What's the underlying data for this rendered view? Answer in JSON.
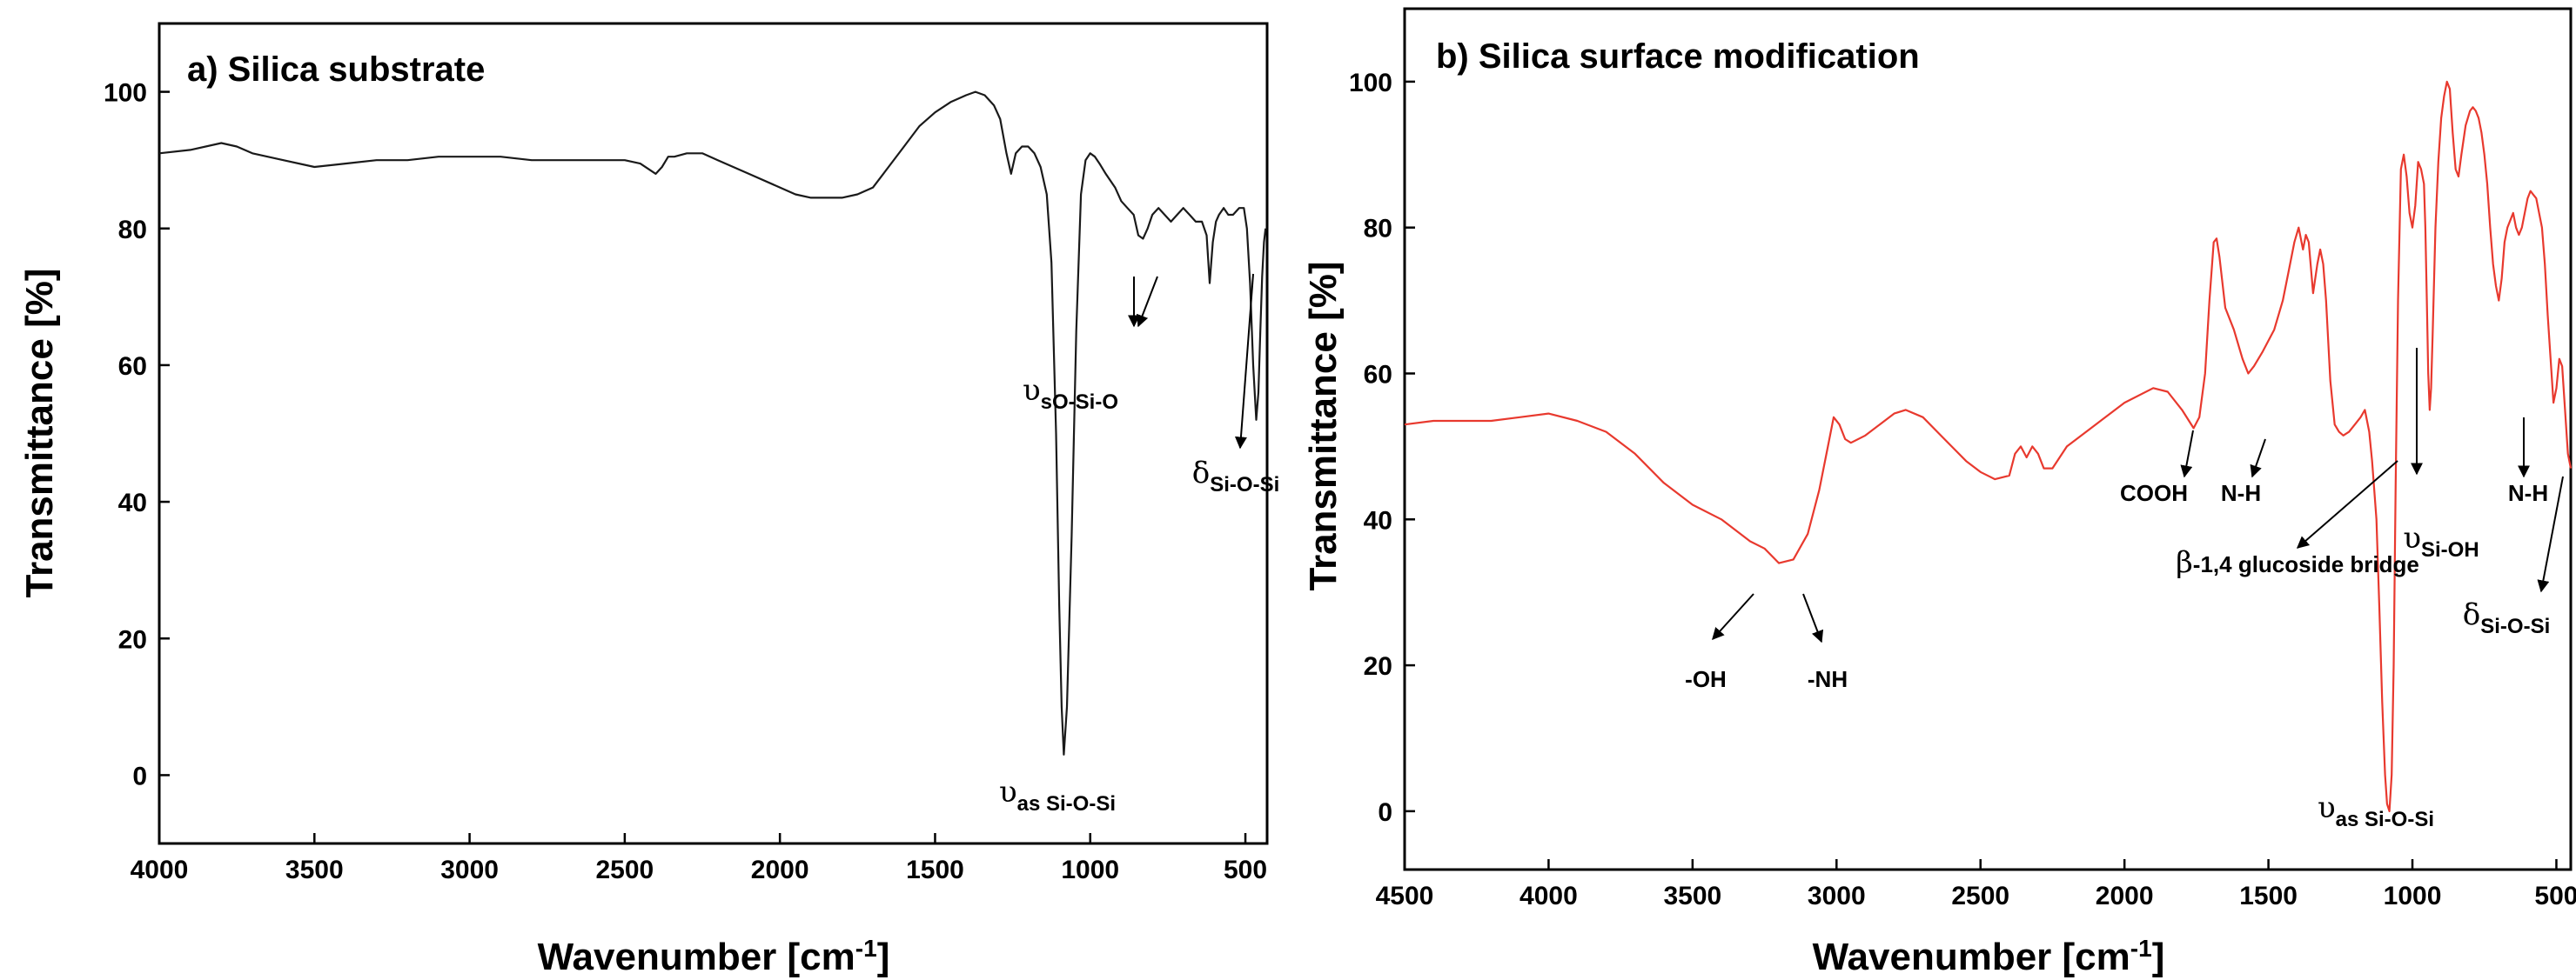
{
  "chart_data": [
    {
      "type": "line",
      "title": "a) Silica substrate",
      "xlabel": "Wavenumber [cm",
      "xlabel_sup": "-1",
      "xlabel_end": "]",
      "ylabel": "Transmittance [%]",
      "xlim": [
        4000,
        430
      ],
      "ylim": [
        -10,
        110
      ],
      "xticks": [
        4000,
        3500,
        3000,
        2500,
        2000,
        1500,
        1000,
        500
      ],
      "yticks": [
        0,
        20,
        40,
        60,
        80,
        100
      ],
      "line_color": "#1a1a1a",
      "series": [
        {
          "name": "Silica substrate",
          "x": [
            4000,
            3900,
            3800,
            3750,
            3700,
            3600,
            3500,
            3400,
            3300,
            3200,
            3100,
            3000,
            2900,
            2800,
            2700,
            2600,
            2500,
            2450,
            2400,
            2380,
            2360,
            2340,
            2300,
            2250,
            2200,
            2100,
            2000,
            1950,
            1900,
            1850,
            1800,
            1750,
            1700,
            1650,
            1600,
            1550,
            1500,
            1450,
            1400,
            1370,
            1340,
            1310,
            1290,
            1270,
            1255,
            1240,
            1220,
            1200,
            1180,
            1160,
            1140,
            1125,
            1110,
            1100,
            1092,
            1085,
            1075,
            1060,
            1045,
            1030,
            1015,
            1000,
            985,
            970,
            950,
            920,
            900,
            880,
            860,
            845,
            830,
            815,
            800,
            790,
            780,
            760,
            740,
            720,
            700,
            680,
            660,
            640,
            625,
            615,
            605,
            595,
            585,
            570,
            555,
            540,
            520,
            505,
            495,
            485,
            475,
            465,
            458,
            452,
            446,
            440,
            435
          ],
          "y": [
            91,
            91.5,
            92.5,
            92,
            91,
            90,
            89,
            89.5,
            90,
            90,
            90.5,
            90.5,
            90.5,
            90,
            90,
            90,
            90,
            89.5,
            88,
            89,
            90.5,
            90.5,
            91,
            91,
            90,
            88,
            86,
            85,
            84.5,
            84.5,
            84.5,
            85,
            86,
            89,
            92,
            95,
            97,
            98.5,
            99.5,
            100,
            99.5,
            98,
            96,
            91,
            88,
            91,
            92,
            92,
            91,
            89,
            85,
            75,
            50,
            25,
            10,
            3,
            10,
            35,
            65,
            85,
            90,
            91,
            90.5,
            89.5,
            88,
            86,
            84,
            83,
            82,
            79,
            78.5,
            80,
            82,
            82.5,
            83,
            82,
            81,
            82,
            83,
            82,
            81,
            81,
            79,
            72,
            78,
            81,
            82,
            83,
            82,
            82,
            83,
            83,
            80,
            72,
            60,
            52,
            56,
            65,
            73,
            78,
            80
          ]
        }
      ],
      "annotations": [
        {
          "symbol": "υ",
          "sub": "sO-Si-O"
        },
        {
          "symbol": "δ",
          "sub": "Si-O-Si"
        },
        {
          "symbol": "υ",
          "sub": "as Si-O-Si"
        }
      ]
    },
    {
      "type": "line",
      "title": "b) Silica surface modification",
      "xlabel": "Wavenumber [cm",
      "xlabel_sup": "-1",
      "xlabel_end": "]",
      "ylabel": "Transmittance [%]",
      "xlim": [
        4500,
        450
      ],
      "ylim": [
        -8,
        110
      ],
      "xticks": [
        4500,
        4000,
        3500,
        3000,
        2500,
        2000,
        1500,
        1000,
        500
      ],
      "yticks": [
        0,
        20,
        40,
        60,
        80,
        100
      ],
      "line_color": "#e8392e",
      "series": [
        {
          "name": "Silica surface modification",
          "x": [
            4500,
            4400,
            4300,
            4200,
            4100,
            4000,
            3900,
            3800,
            3700,
            3600,
            3500,
            3400,
            3300,
            3250,
            3200,
            3150,
            3100,
            3060,
            3030,
            3010,
            2990,
            2970,
            2950,
            2900,
            2850,
            2800,
            2760,
            2700,
            2650,
            2600,
            2550,
            2500,
            2450,
            2400,
            2380,
            2360,
            2340,
            2320,
            2300,
            2280,
            2250,
            2200,
            2100,
            2000,
            1900,
            1850,
            1800,
            1760,
            1740,
            1720,
            1705,
            1690,
            1680,
            1670,
            1650,
            1620,
            1590,
            1570,
            1550,
            1520,
            1480,
            1450,
            1430,
            1410,
            1395,
            1380,
            1370,
            1360,
            1345,
            1330,
            1320,
            1310,
            1300,
            1285,
            1270,
            1255,
            1240,
            1220,
            1200,
            1180,
            1165,
            1150,
            1140,
            1125,
            1115,
            1105,
            1095,
            1088,
            1080,
            1072,
            1065,
            1058,
            1050,
            1040,
            1030,
            1020,
            1010,
            1000,
            990,
            980,
            970,
            960,
            955,
            950,
            945,
            940,
            935,
            930,
            920,
            910,
            900,
            890,
            880,
            870,
            860,
            850,
            840,
            830,
            815,
            800,
            790,
            780,
            770,
            760,
            750,
            740,
            730,
            720,
            710,
            700,
            690,
            680,
            670,
            660,
            650,
            640,
            630,
            620,
            610,
            600,
            590,
            580,
            570,
            560,
            550,
            540,
            530,
            520,
            510,
            500,
            490,
            480,
            470,
            460,
            450
          ],
          "y": [
            53,
            53.5,
            53.5,
            53.5,
            54,
            54.5,
            53.5,
            52,
            49,
            45,
            42,
            40,
            37,
            36,
            34,
            34.5,
            38,
            44,
            50,
            54,
            53,
            51,
            50.5,
            51.5,
            53,
            54.5,
            55,
            54,
            52,
            50,
            48,
            46.5,
            45.5,
            46,
            49,
            50,
            48.5,
            50,
            49,
            47,
            47,
            50,
            53,
            56,
            58,
            57.5,
            55,
            52.5,
            54,
            60,
            70,
            78,
            78.5,
            76,
            69,
            66,
            62,
            60,
            61,
            63,
            66,
            70,
            74,
            78,
            80,
            77,
            79,
            78,
            71,
            75,
            77,
            75,
            70,
            59,
            53,
            52,
            51.5,
            52,
            53,
            54,
            55,
            52,
            48,
            40,
            28,
            15,
            5,
            1,
            0,
            5,
            20,
            45,
            70,
            88,
            90,
            87,
            82,
            80,
            83,
            89,
            88,
            86,
            80,
            70,
            60,
            55,
            58,
            65,
            80,
            89,
            95,
            98,
            100,
            99,
            93,
            88,
            87,
            90,
            94,
            96,
            96.5,
            96,
            95,
            93,
            90,
            86,
            80,
            75,
            72,
            70,
            73,
            78,
            80,
            81,
            82,
            80,
            79,
            80,
            82,
            84,
            85,
            84.5,
            84,
            82,
            80,
            75,
            68,
            62,
            56,
            58,
            62,
            61,
            55,
            49,
            47
          ]
        }
      ],
      "annotations": [
        {
          "label": "-OH"
        },
        {
          "label": "-NH"
        },
        {
          "label": "COOH"
        },
        {
          "label": "N-H"
        },
        {
          "prefix": "β",
          "label": "-1,4 glucoside bridge"
        },
        {
          "symbol": "υ",
          "sub": "Si-OH"
        },
        {
          "label": "N-H"
        },
        {
          "symbol": "δ",
          "sub": "Si-O-Si"
        },
        {
          "symbol": "υ",
          "sub": "as Si-O-Si"
        }
      ]
    }
  ]
}
